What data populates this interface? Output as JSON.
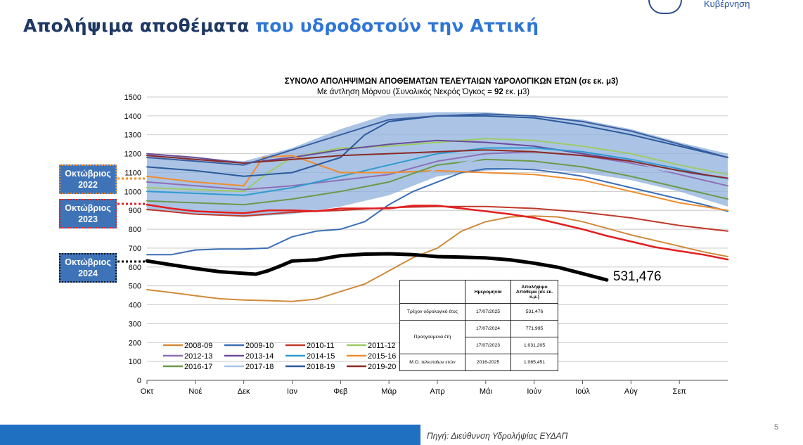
{
  "slide": {
    "title_part1": "Απολήψιμα αποθέματα ",
    "title_part2": "που υδροδοτούν την Αττική",
    "logo_text": "Κυβέρνηση",
    "source": "Πηγή: Διεύθυνση Υδρολήψίας ΕΥΔΑΠ",
    "page_number": "5"
  },
  "labels": {
    "oct_2022": [
      "Οκτώβριος",
      "2022"
    ],
    "oct_2023": [
      "Οκτώβριος",
      "2023"
    ],
    "oct_2024": [
      "Οκτώβριος",
      "2024"
    ]
  },
  "table": {
    "headers": [
      "",
      "Ημερομηνία",
      "Απολήψιμο Απόθεμα (σε εκ. κ.μ.)"
    ],
    "rows": [
      [
        "Τρέχον υδρολογικό έτος",
        "17/07/2025",
        "531,476"
      ],
      [
        "Προηγούμενα έτη",
        "17/07/2024",
        "771,995"
      ],
      [
        "",
        "17/07/2023",
        "1.031,205"
      ],
      [
        "Μ.Ο. τελευταίων ετών",
        "2016-2025",
        "1.065,451"
      ]
    ]
  },
  "chart_data": {
    "type": "line",
    "title": "ΣΥΝΟΛΟ ΑΠΟΛΗΨΙΜΩΝ ΑΠΟΘΕΜΑΤΩΝ ΤΕΛΕΥΤΑΙΩΝ ΥΔΡΟΛΟΓΙΚΩΝ ΕΤΩΝ  (σε εκ. μ3)",
    "subtitle_parts": [
      "Με άντληση Μόρνου (Συνολικός Νεκρός Όγκος = ",
      "92",
      " εκ. μ3)"
    ],
    "categories": [
      "Οκτ",
      "Νοέ",
      "Δεκ",
      "Ιαν",
      "Φεβ",
      "Μάρ",
      "Απρ",
      "Μάι",
      "Ιούν",
      "Ιούλ",
      "Αύγ",
      "Σεπ"
    ],
    "ylim": [
      0,
      1500
    ],
    "yticks": [
      0,
      100,
      200,
      300,
      400,
      500,
      600,
      700,
      800,
      900,
      1000,
      1100,
      1200,
      1300,
      1400,
      1500
    ],
    "grid": true,
    "legend": "bottom-left",
    "colors": {
      "band": "#8fb0dc",
      "current": "#000000",
      "prev": "#e21f1f",
      "y2008": "#d08a3a",
      "y2009": "#3b6db5",
      "title": "#000000",
      "slide_title": "#1f3864",
      "slide_title_accent": "#2e75d6",
      "footer": "#1f70c1",
      "label_box": "#3f73b8"
    },
    "series": [
      {
        "name": "2008-09",
        "color": "#d08a3a",
        "width": 2,
        "x": [
          0,
          0.5,
          1,
          1.5,
          2,
          2.5,
          3,
          3.5,
          4,
          4.5,
          5,
          5.5,
          6,
          6.5,
          7,
          7.5,
          8,
          8.5,
          9,
          9.5,
          10,
          10.5,
          11,
          11.5,
          12
        ],
        "y": [
          480,
          465,
          448,
          432,
          425,
          422,
          418,
          430,
          470,
          510,
          580,
          650,
          700,
          790,
          840,
          865,
          870,
          865,
          840,
          805,
          770,
          740,
          710,
          680,
          655
        ]
      },
      {
        "name": "2009-10",
        "color": "#3b6db5",
        "width": 2,
        "x": [
          0,
          0.5,
          1,
          1.5,
          2,
          2.5,
          3,
          3.5,
          4,
          4.5,
          5,
          5.5,
          6,
          6.5,
          7,
          7.5,
          8,
          8.5,
          9,
          9.5,
          10,
          10.5,
          11,
          11.5,
          12
        ],
        "y": [
          665,
          665,
          690,
          695,
          695,
          700,
          760,
          790,
          800,
          840,
          930,
          1000,
          1050,
          1100,
          1120,
          1120,
          1115,
          1100,
          1080,
          1050,
          1020,
          990,
          960,
          930,
          895
        ]
      },
      {
        "name": "2010-11",
        "color": "#c0392b",
        "width": 2,
        "x": [
          0,
          1,
          2,
          3,
          4,
          5,
          6,
          7,
          8,
          9,
          10,
          11,
          12
        ],
        "y": [
          905,
          880,
          870,
          890,
          900,
          915,
          920,
          920,
          910,
          890,
          860,
          820,
          790
        ]
      },
      {
        "name": "2011-12",
        "color": "#9ccc65",
        "width": 2,
        "x": [
          0,
          1,
          2,
          2.5,
          3,
          4,
          5,
          6,
          7,
          8,
          9,
          10,
          11,
          12
        ],
        "y": [
          1020,
          1010,
          1000,
          1100,
          1180,
          1230,
          1240,
          1260,
          1280,
          1270,
          1240,
          1200,
          1140,
          1090
        ]
      },
      {
        "name": "2012-13",
        "color": "#8e6fb6",
        "width": 2,
        "x": [
          0,
          1,
          2,
          3,
          4,
          5,
          6,
          7,
          8,
          9,
          10,
          11,
          12
        ],
        "y": [
          1050,
          1030,
          1010,
          1030,
          1060,
          1090,
          1160,
          1200,
          1210,
          1190,
          1150,
          1090,
          1030
        ]
      },
      {
        "name": "2013-14",
        "color": "#6a4c9c",
        "width": 2,
        "x": [
          0,
          1,
          2,
          3,
          4,
          5,
          6,
          7,
          8,
          9,
          10,
          11,
          12
        ],
        "y": [
          1200,
          1180,
          1150,
          1180,
          1220,
          1250,
          1270,
          1260,
          1240,
          1200,
          1160,
          1110,
          1060
        ]
      },
      {
        "name": "2014-15",
        "color": "#2f9bcf",
        "width": 2,
        "x": [
          0,
          1,
          2,
          3,
          4,
          5,
          6,
          7,
          8,
          9,
          10,
          11,
          12
        ],
        "y": [
          1000,
          990,
          980,
          1020,
          1080,
          1140,
          1200,
          1230,
          1230,
          1210,
          1170,
          1120,
          1060
        ]
      },
      {
        "name": "2015-16",
        "color": "#f08c2c",
        "width": 2,
        "x": [
          0,
          1,
          2,
          2.4,
          3,
          4,
          5,
          6,
          7,
          8,
          9,
          10,
          11,
          12
        ],
        "y": [
          1080,
          1050,
          1030,
          1180,
          1190,
          1100,
          1100,
          1110,
          1100,
          1090,
          1060,
          1000,
          940,
          900
        ]
      },
      {
        "name": "2016-17",
        "color": "#6b9a4a",
        "width": 2,
        "x": [
          0,
          1,
          2,
          3,
          4,
          5,
          6,
          7,
          8,
          9,
          10,
          11,
          12
        ],
        "y": [
          950,
          940,
          930,
          960,
          1000,
          1050,
          1140,
          1170,
          1160,
          1130,
          1080,
          1020,
          960
        ]
      },
      {
        "name": "2017-18",
        "color": "#a9c4e8",
        "width": 2,
        "x": [
          0,
          1,
          2,
          3,
          4,
          5,
          6,
          7,
          8,
          9,
          10,
          11,
          12
        ],
        "y": [
          920,
          905,
          880,
          900,
          940,
          1010,
          1120,
          1180,
          1190,
          1170,
          1140,
          1100,
          1060
        ]
      },
      {
        "name": "2018-19",
        "color": "#2c5a9c",
        "width": 2,
        "x": [
          0,
          1,
          2,
          3,
          4,
          4.5,
          5,
          6,
          7,
          8,
          9,
          10,
          11,
          12
        ],
        "y": [
          1130,
          1110,
          1080,
          1100,
          1180,
          1300,
          1370,
          1400,
          1400,
          1390,
          1350,
          1300,
          1240,
          1180
        ]
      },
      {
        "name": "2019-20",
        "color": "#8b2a25",
        "width": 2,
        "x": [
          0,
          1,
          2,
          3,
          4,
          5,
          6,
          7,
          8,
          9,
          10,
          11,
          12
        ],
        "y": [
          1190,
          1170,
          1150,
          1170,
          1190,
          1200,
          1210,
          1220,
          1210,
          1190,
          1160,
          1110,
          1070
        ]
      },
      {
        "name": "",
        "color": "#3a5fa0",
        "width": 2,
        "x": [
          0,
          1,
          2,
          3,
          4,
          5,
          6,
          7,
          8,
          9,
          10,
          11,
          12
        ],
        "y": [
          1180,
          1160,
          1140,
          1220,
          1300,
          1380,
          1400,
          1410,
          1400,
          1370,
          1320,
          1250,
          1180
        ]
      },
      {
        "name": "",
        "color": "#e21f1f",
        "width": 2.5,
        "x": [
          0,
          0.5,
          1,
          1.5,
          2,
          2.5,
          3,
          3.5,
          4,
          4.5,
          5,
          5.5,
          6,
          6.5,
          7,
          7.5,
          8,
          8.5,
          9,
          9.5,
          10,
          10.5,
          11,
          11.5,
          12
        ],
        "y": [
          930,
          910,
          895,
          890,
          885,
          900,
          900,
          895,
          910,
          910,
          910,
          925,
          925,
          910,
          895,
          880,
          860,
          830,
          800,
          765,
          735,
          705,
          685,
          665,
          640
        ]
      },
      {
        "name": "",
        "color": "#000000",
        "width": 5,
        "x": [
          0,
          0.5,
          1,
          1.5,
          2,
          2.25,
          2.5,
          2.75,
          3,
          3.5,
          4,
          4.5,
          5,
          5.5,
          6,
          6.5,
          7,
          7.5,
          8,
          8.5,
          9,
          9.5
        ],
        "y": [
          632,
          612,
          592,
          575,
          566,
          562,
          580,
          605,
          632,
          638,
          660,
          668,
          670,
          665,
          655,
          652,
          648,
          638,
          620,
          598,
          565,
          531.476
        ]
      }
    ],
    "band_upper": [
      1200,
      1180,
      1160,
      1230,
      1330,
      1410,
      1420,
      1420,
      1400,
      1380,
      1330,
      1260,
      1200
    ],
    "band_lower": [
      900,
      880,
      865,
      880,
      920,
      980,
      1080,
      1110,
      1120,
      1100,
      1060,
      1000,
      920
    ],
    "annotation": "531,476"
  }
}
